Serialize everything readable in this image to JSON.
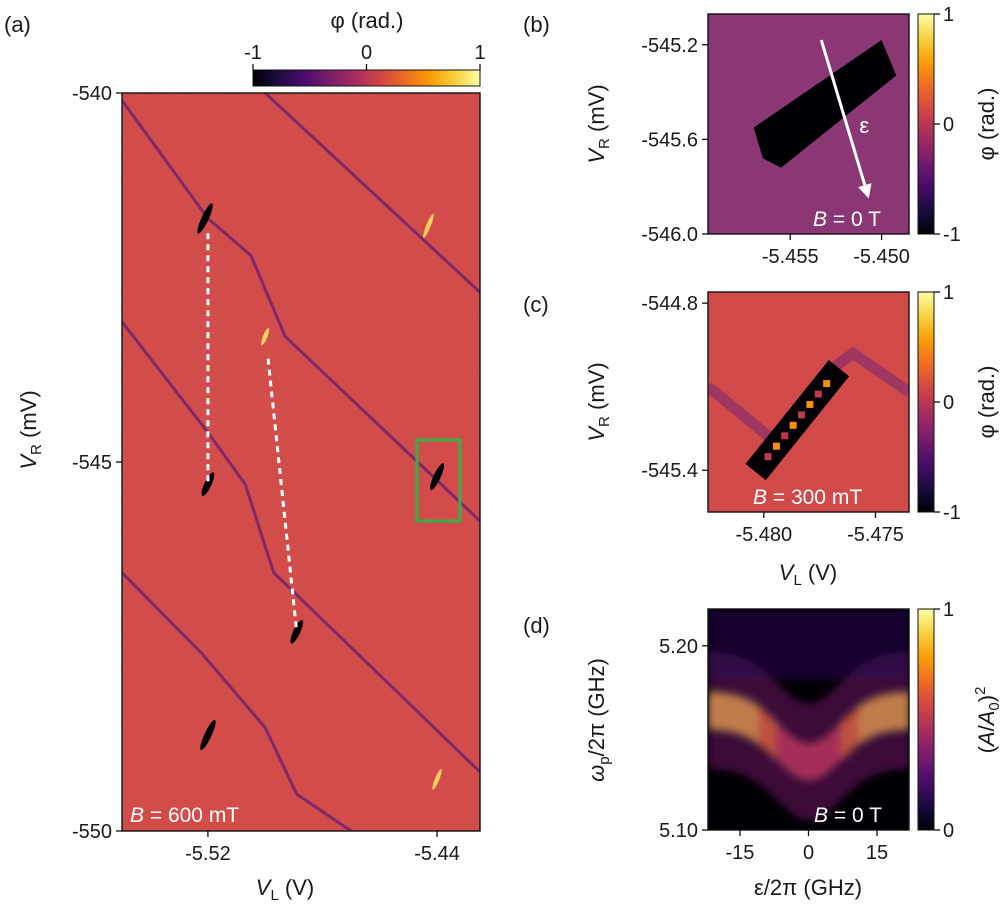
{
  "colormap": {
    "name": "inferno",
    "stops": [
      "#000004",
      "#1b0c41",
      "#4a0c6b",
      "#781c6d",
      "#a52c60",
      "#cf4446",
      "#ed6925",
      "#fb9b06",
      "#f7d13d",
      "#fcffa4"
    ]
  },
  "accent_colors": {
    "phase_background": "#cf4446",
    "highlight_box": "#3faa48",
    "dashed_line": "#ffffff"
  },
  "panels": [
    {
      "id": "a",
      "label": "(a)",
      "type": "heatmap",
      "xlabel": {
        "base": "V",
        "sub": "L",
        "unit": " (V)"
      },
      "ylabel": {
        "base": "V",
        "sub": "R",
        "unit": " (mV)"
      },
      "x_range": [
        -5.55,
        -5.425
      ],
      "y_range": [
        -550,
        -540
      ],
      "x_ticks": [
        {
          "v": -5.52,
          "t": "-5.52"
        },
        {
          "v": -5.44,
          "t": "-5.44"
        }
      ],
      "y_ticks": [
        {
          "v": -540,
          "t": "-540"
        },
        {
          "v": -545,
          "t": "-545"
        },
        {
          "v": -550,
          "t": "-550"
        }
      ],
      "annotation": {
        "var": "B",
        "text": " = 600 mT"
      },
      "colorbar": {
        "orientation": "horizontal",
        "label": "φ (rad.)",
        "range": [
          -1,
          1
        ],
        "ticks": [
          {
            "v": -1,
            "t": "-1"
          },
          {
            "v": 0,
            "t": "0"
          },
          {
            "v": 1,
            "t": "1"
          }
        ]
      },
      "charge_transition_lines": [
        [
          [
            -5.5,
            -540.0
          ],
          [
            -5.425,
            -542.7
          ]
        ],
        [
          [
            -5.55,
            -540.1
          ],
          [
            -5.52,
            -541.7
          ],
          [
            -5.505,
            -542.2
          ],
          [
            -5.493,
            -543.3
          ],
          [
            -5.425,
            -545.8
          ]
        ],
        [
          [
            -5.55,
            -543.1
          ],
          [
            -5.52,
            -544.6
          ],
          [
            -5.507,
            -545.3
          ],
          [
            -5.497,
            -546.5
          ],
          [
            -5.425,
            -549.2
          ]
        ],
        [
          [
            -5.55,
            -546.5
          ],
          [
            -5.522,
            -547.6
          ],
          [
            -5.5,
            -548.6
          ],
          [
            -5.489,
            -549.5
          ],
          [
            -5.47,
            -550.0
          ]
        ]
      ],
      "dark_features": [
        {
          "x": -5.521,
          "y": -541.7,
          "len": 0.45
        },
        {
          "x": -5.52,
          "y": -545.3,
          "len": 0.35
        },
        {
          "x": -5.489,
          "y": -547.3,
          "len": 0.35
        },
        {
          "x": -5.44,
          "y": -545.2,
          "len": 0.4
        },
        {
          "x": -5.52,
          "y": -548.7,
          "len": 0.45
        }
      ],
      "bright_features": [
        {
          "x": -5.443,
          "y": -541.8,
          "len": 0.35
        },
        {
          "x": -5.5,
          "y": -543.3,
          "len": 0.25
        },
        {
          "x": -5.44,
          "y": -549.3,
          "len": 0.3
        }
      ],
      "dashed_segments": [
        [
          [
            -5.52,
            -541.9
          ],
          [
            -5.52,
            -545.3
          ]
        ],
        [
          [
            -5.499,
            -543.6
          ],
          [
            -5.489,
            -547.3
          ]
        ]
      ],
      "highlight_box": {
        "x0": -5.447,
        "x1": -5.432,
        "y0": -544.7,
        "y1": -545.8
      }
    },
    {
      "id": "b",
      "label": "(b)",
      "type": "heatmap",
      "xlabel": null,
      "ylabel": {
        "base": "V",
        "sub": "R",
        "unit": " (mV)"
      },
      "x_range": [
        -5.4595,
        -5.4485
      ],
      "y_range": [
        -546.0,
        -545.07
      ],
      "x_ticks": [
        {
          "v": -5.455,
          "t": "-5.455"
        },
        {
          "v": -5.45,
          "t": "-5.450"
        }
      ],
      "y_ticks": [
        {
          "v": -545.2,
          "t": "-545.2"
        },
        {
          "v": -545.6,
          "t": "-545.6"
        },
        {
          "v": -546.0,
          "t": "-546.0"
        }
      ],
      "annotation": {
        "var": "B",
        "text": " = 0 T"
      },
      "arrow": {
        "from": [
          -5.4533,
          -545.18
        ],
        "to": [
          -5.4507,
          -545.85
        ],
        "label": "ε"
      },
      "dark_blob": [
        [
          -5.457,
          -545.55
        ],
        [
          -5.45,
          -545.18
        ],
        [
          -5.4492,
          -545.33
        ],
        [
          -5.4555,
          -545.72
        ],
        [
          -5.4565,
          -545.68
        ]
      ],
      "colorbar": {
        "orientation": "vertical",
        "label": "φ (rad.)",
        "range": [
          -1,
          1
        ],
        "ticks": [
          {
            "v": 1,
            "t": "1"
          },
          {
            "v": 0,
            "t": "0"
          },
          {
            "v": -1,
            "t": "-1"
          }
        ]
      }
    },
    {
      "id": "c",
      "label": "(c)",
      "type": "heatmap",
      "xlabel": {
        "base": "V",
        "sub": "L",
        "unit": " (V)"
      },
      "ylabel": {
        "base": "V",
        "sub": "R",
        "unit": " (mV)"
      },
      "x_range": [
        -5.4825,
        -5.4735
      ],
      "y_range": [
        -545.55,
        -544.76
      ],
      "x_ticks": [
        {
          "v": -5.48,
          "t": "-5.480"
        },
        {
          "v": -5.475,
          "t": "-5.475"
        }
      ],
      "y_ticks": [
        {
          "v": -544.8,
          "t": "-544.8"
        },
        {
          "v": -545.4,
          "t": "-545.4"
        }
      ],
      "annotation": {
        "var": "B",
        "text": " = 300 mT"
      },
      "diagonal_band": {
        "from": [
          -5.48,
          -545.37
        ],
        "to": [
          -5.477,
          -545.07
        ],
        "half_width": 0.00045
      },
      "background_lines": [
        [
          [
            -5.4825,
            -545.1
          ],
          [
            -5.479,
            -545.33
          ]
        ],
        [
          [
            -5.4772,
            -545.05
          ],
          [
            -5.476,
            -544.98
          ],
          [
            -5.4735,
            -545.12
          ]
        ]
      ],
      "colorbar": {
        "orientation": "vertical",
        "label": "φ (rad.)",
        "range": [
          -1,
          1
        ],
        "ticks": [
          {
            "v": 1,
            "t": "1"
          },
          {
            "v": 0,
            "t": "0"
          },
          {
            "v": -1,
            "t": "-1"
          }
        ]
      }
    },
    {
      "id": "d",
      "label": "(d)",
      "type": "heatmap",
      "xlabel": {
        "text": "ε/2π (GHz)"
      },
      "ylabel": {
        "base": "ω",
        "sub": "p",
        "unit": "/2π (GHz)"
      },
      "x_range": [
        -22,
        22
      ],
      "y_range": [
        5.1,
        5.22
      ],
      "x_ticks": [
        {
          "v": -15,
          "t": "-15"
        },
        {
          "v": 0,
          "t": "0"
        },
        {
          "v": 15,
          "t": "15"
        }
      ],
      "y_ticks": [
        {
          "v": 5.2,
          "t": "5.20"
        },
        {
          "v": 5.1,
          "t": "5.10"
        }
      ],
      "annotation": {
        "var": "B",
        "text": " = 0 T"
      },
      "resonance": {
        "f0": 5.165,
        "dip_f": 5.137,
        "dip_width": 7,
        "linewidth": 0.009
      },
      "colorbar": {
        "orientation": "vertical",
        "label": "(A/A0)2",
        "label_parts": {
          "open": "(",
          "var": "A",
          "mid": "/",
          "var2": "A",
          "sub": "0",
          "close": ")",
          "sup": "2"
        },
        "range": [
          0,
          1
        ],
        "ticks": [
          {
            "v": 1,
            "t": "1"
          },
          {
            "v": 0,
            "t": "0"
          }
        ]
      }
    }
  ]
}
